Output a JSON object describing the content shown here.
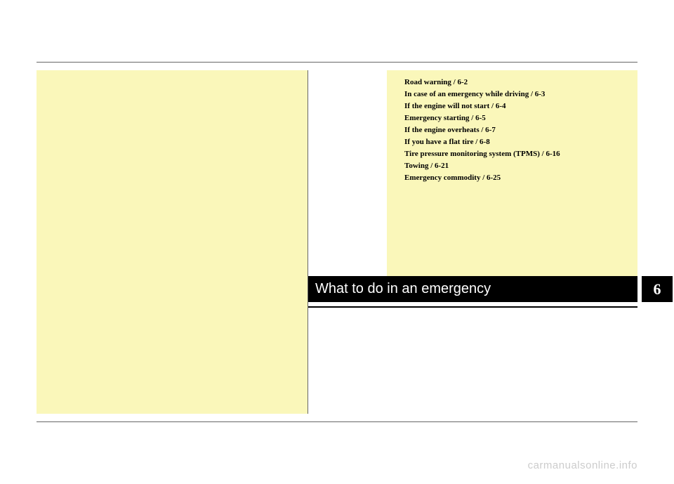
{
  "chapter": {
    "title": "What to do in an emergency",
    "number": "6"
  },
  "toc": {
    "items": [
      "Road warning / 6-2",
      "In case of an emergency while driving / 6-3",
      "If the engine will not start / 6-4",
      "Emergency starting / 6-5",
      "If the engine overheats / 6-7",
      "If you have a flat tire / 6-8",
      "Tire pressure monitoring system (TPMS) / 6-16",
      "Towing / 6-21",
      "Emergency commodity / 6-25"
    ]
  },
  "watermark": "carmanualsonline.info",
  "colors": {
    "yellow_bg": "#faf7ba",
    "black": "#000000",
    "white": "#ffffff",
    "divider": "#666666",
    "watermark": "#cccccc"
  }
}
